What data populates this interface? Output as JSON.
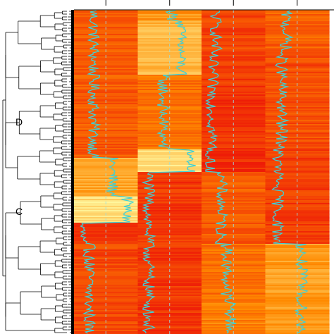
{
  "figure": {
    "cluster_labels": [
      "D",
      "C"
    ]
  },
  "heatmap": {
    "column_count": 4,
    "colors": {
      "low": "#ee1c07",
      "mid": "#ff8a00",
      "high": "#fff8a0",
      "trace": "#3fd1d6",
      "dendrogram": "#000000",
      "guide": "#9ae0e6"
    },
    "column_blocks": [
      [
        {
          "rows": [
            0,
            0.455
          ],
          "level": 0.28
        },
        {
          "rows": [
            0.455,
            0.575
          ],
          "level": 0.62
        },
        {
          "rows": [
            0.575,
            0.655
          ],
          "level": 0.88
        },
        {
          "rows": [
            0.655,
            0.72
          ],
          "level": 0.07
        },
        {
          "rows": [
            0.72,
            1
          ],
          "level": 0.2
        }
      ],
      [
        {
          "rows": [
            0,
            0.03
          ],
          "level": 0.55
        },
        {
          "rows": [
            0.03,
            0.2
          ],
          "level": 0.7
        },
        {
          "rows": [
            0.2,
            0.43
          ],
          "level": 0.38
        },
        {
          "rows": [
            0.43,
            0.5
          ],
          "level": 0.88
        },
        {
          "rows": [
            0.5,
            1
          ],
          "level": 0.12
        }
      ],
      [
        {
          "rows": [
            0,
            0.12
          ],
          "level": 0.18
        },
        {
          "rows": [
            0.12,
            0.43
          ],
          "level": 0.12
        },
        {
          "rows": [
            0.43,
            0.5
          ],
          "level": 0.06
        },
        {
          "rows": [
            0.5,
            0.72
          ],
          "level": 0.28
        },
        {
          "rows": [
            0.72,
            0.9
          ],
          "level": 0.38
        },
        {
          "rows": [
            0.9,
            1
          ],
          "level": 0.45
        }
      ],
      [
        {
          "rows": [
            0,
            0.12
          ],
          "level": 0.3
        },
        {
          "rows": [
            0.12,
            0.43
          ],
          "level": 0.22
        },
        {
          "rows": [
            0.43,
            0.72
          ],
          "level": 0.15
        },
        {
          "rows": [
            0.72,
            1
          ],
          "level": 0.58
        }
      ]
    ]
  }
}
